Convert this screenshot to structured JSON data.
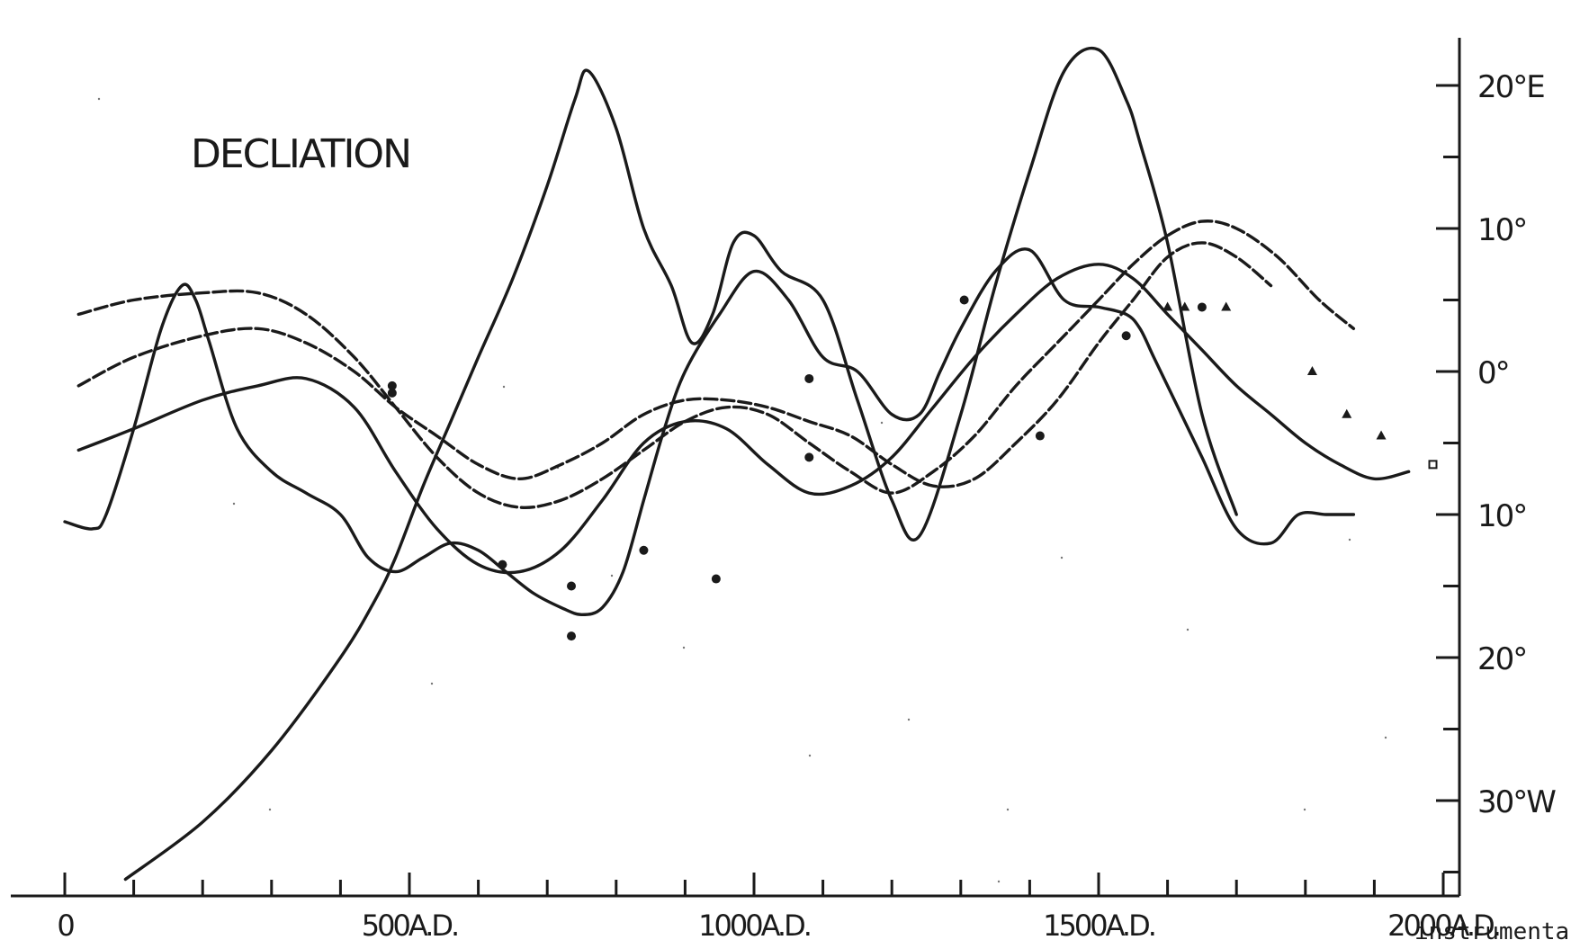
{
  "chart_data": {
    "type": "line",
    "title": "DECLIATION",
    "caption_fragment": "instrumental",
    "x_ticks": [
      {
        "value": 0,
        "label": "0"
      },
      {
        "value": 500,
        "label": "500A.D."
      },
      {
        "value": 1000,
        "label": "1000A.D."
      },
      {
        "value": 1500,
        "label": "1500A.D."
      },
      {
        "value": 2000,
        "label": "2000A.D."
      }
    ],
    "x_minor_step": 100,
    "xlim": [
      0,
      2000
    ],
    "y_ticks": [
      {
        "value": 20,
        "label": "20°E"
      },
      {
        "value": 10,
        "label": "10°"
      },
      {
        "value": 0,
        "label": "0°"
      },
      {
        "value": -10,
        "label": "10°"
      },
      {
        "value": -20,
        "label": "20°"
      },
      {
        "value": -30,
        "label": "30°W"
      }
    ],
    "y_minor_step": 5,
    "ylim": [
      -36,
      24
    ],
    "grid": false,
    "series": [
      {
        "style": "solid",
        "x": [
          88,
          200,
          300,
          400,
          450,
          480,
          520,
          560,
          600,
          650,
          700,
          740,
          760,
          800,
          840,
          880,
          910,
          940,
          970,
          1000,
          1040,
          1100,
          1150,
          1200,
          1240,
          1300,
          1350,
          1400,
          1450,
          1500,
          1540,
          1560,
          1600,
          1650,
          1700
        ],
        "y": [
          -35.5,
          -31.5,
          -26.5,
          -20,
          -16,
          -13,
          -8,
          -3.5,
          1,
          6.5,
          13,
          19,
          21,
          17,
          10,
          6,
          2,
          4,
          9,
          9.5,
          7,
          5,
          -2,
          -9,
          -11.5,
          -3,
          6,
          14,
          21,
          22.5,
          19,
          16,
          9,
          -3,
          -10
        ]
      },
      {
        "style": "solid",
        "x": [
          0,
          40,
          60,
          100,
          140,
          170,
          190,
          210,
          250,
          300,
          350,
          400,
          440,
          480,
          520,
          560,
          600,
          640,
          680,
          720,
          750,
          780,
          810,
          840,
          870,
          900,
          950,
          1000,
          1050,
          1100,
          1150,
          1200,
          1240,
          1270,
          1300,
          1350,
          1400,
          1450,
          1500,
          1540,
          1560,
          1580,
          1610,
          1650,
          1700,
          1750,
          1790,
          1830,
          1870
        ],
        "y": [
          -10.5,
          -11,
          -10,
          -4,
          3,
          6,
          5,
          2,
          -4,
          -7,
          -8.5,
          -10,
          -13,
          -14,
          -13,
          -12,
          -12.5,
          -14,
          -15.5,
          -16.5,
          -17,
          -16.5,
          -14,
          -9,
          -4,
          0,
          4,
          7,
          5,
          1,
          0,
          -3,
          -3,
          0,
          3,
          7,
          8.5,
          5,
          4.5,
          4,
          3,
          1,
          -2,
          -6,
          -11,
          -12,
          -10,
          -10,
          -10
        ]
      },
      {
        "style": "solid",
        "x": [
          20,
          100,
          200,
          280,
          350,
          420,
          480,
          540,
          600,
          660,
          720,
          780,
          840,
          900,
          960,
          1020,
          1080,
          1140,
          1200,
          1260,
          1320,
          1380,
          1440,
          1500,
          1550,
          1600,
          1650,
          1700,
          1750,
          1800,
          1850,
          1900,
          1950
        ],
        "y": [
          -5.5,
          -4,
          -2,
          -1,
          -0.5,
          -2.5,
          -7,
          -11,
          -13.5,
          -14,
          -12.5,
          -9,
          -5,
          -3.5,
          -4,
          -6.5,
          -8.5,
          -8,
          -6,
          -2.5,
          1,
          4,
          6.5,
          7.5,
          6.5,
          4,
          1.5,
          -1,
          -3,
          -5,
          -6.5,
          -7.5,
          -7
        ]
      },
      {
        "style": "dashed",
        "x": [
          20,
          100,
          200,
          280,
          350,
          420,
          480,
          540,
          600,
          660,
          720,
          780,
          840,
          900,
          960,
          1020,
          1080,
          1140,
          1200,
          1260,
          1320,
          1380,
          1440,
          1500,
          1550,
          1600,
          1650,
          1700,
          1750
        ],
        "y": [
          -1,
          1,
          2.5,
          3,
          2,
          0,
          -2.5,
          -4.5,
          -6.5,
          -7.5,
          -6.5,
          -5,
          -3,
          -2,
          -2,
          -2.5,
          -3.5,
          -4.5,
          -6.5,
          -8,
          -7.5,
          -5,
          -2,
          2,
          5,
          8,
          9,
          8,
          6
        ]
      },
      {
        "style": "dashed",
        "x": [
          20,
          100,
          200,
          280,
          350,
          420,
          480,
          540,
          600,
          660,
          720,
          780,
          840,
          900,
          960,
          1020,
          1080,
          1140,
          1200,
          1260,
          1320,
          1380,
          1440,
          1500,
          1550,
          1600,
          1650,
          1700,
          1760,
          1820,
          1870
        ],
        "y": [
          4,
          5,
          5.5,
          5.5,
          4,
          1,
          -2.5,
          -6,
          -8.5,
          -9.5,
          -9,
          -7.5,
          -5.5,
          -3.5,
          -2.5,
          -3,
          -5,
          -7,
          -8.5,
          -7,
          -4.5,
          -1,
          2,
          5,
          7.5,
          9.5,
          10.5,
          10,
          8,
          5,
          3
        ]
      }
    ],
    "points": [
      {
        "x": 475,
        "y": -1,
        "marker": "circle"
      },
      {
        "x": 475,
        "y": -1.5,
        "marker": "circle"
      },
      {
        "x": 635,
        "y": -13.5,
        "marker": "circle"
      },
      {
        "x": 735,
        "y": -15,
        "marker": "circle"
      },
      {
        "x": 735,
        "y": -18.5,
        "marker": "circle"
      },
      {
        "x": 840,
        "y": -12.5,
        "marker": "circle"
      },
      {
        "x": 945,
        "y": -14.5,
        "marker": "circle"
      },
      {
        "x": 1080,
        "y": -0.5,
        "marker": "circle"
      },
      {
        "x": 1080,
        "y": -6,
        "marker": "circle"
      },
      {
        "x": 1305,
        "y": 5,
        "marker": "circle"
      },
      {
        "x": 1415,
        "y": -4.5,
        "marker": "circle"
      },
      {
        "x": 1540,
        "y": 2.5,
        "marker": "circle"
      },
      {
        "x": 1650,
        "y": 4.5,
        "marker": "circle"
      },
      {
        "x": 1685,
        "y": 4.5,
        "marker": "triangle"
      },
      {
        "x": 1600,
        "y": 4.5,
        "marker": "triangle"
      },
      {
        "x": 1625,
        "y": 4.5,
        "marker": "triangle"
      },
      {
        "x": 1810,
        "y": 0,
        "marker": "triangle"
      },
      {
        "x": 1860,
        "y": -3,
        "marker": "triangle"
      },
      {
        "x": 1910,
        "y": -4.5,
        "marker": "triangle"
      },
      {
        "x": 1985,
        "y": -6.5,
        "marker": "square"
      }
    ]
  }
}
